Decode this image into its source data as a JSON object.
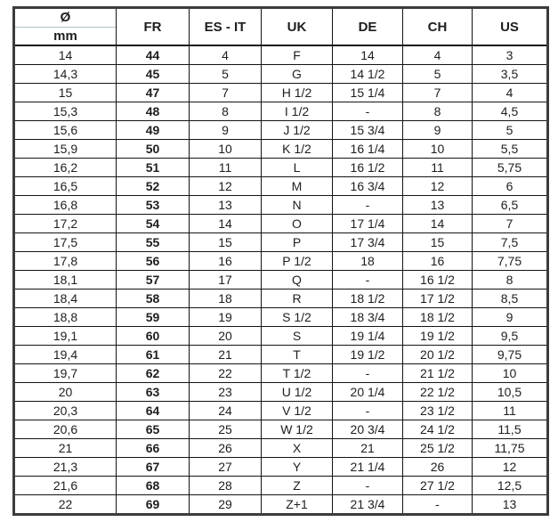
{
  "table": {
    "title": "ring-size-conversion",
    "columns": [
      {
        "key": "mm",
        "label_top": "Ø",
        "label_bottom": "mm"
      },
      {
        "key": "fr",
        "label": "FR"
      },
      {
        "key": "es-it",
        "label": "ES - IT"
      },
      {
        "key": "uk",
        "label": "UK"
      },
      {
        "key": "de",
        "label": "DE"
      },
      {
        "key": "ch",
        "label": "CH"
      },
      {
        "key": "us",
        "label": "US"
      }
    ],
    "rows": [
      [
        "14",
        "44",
        "4",
        "F",
        "14",
        "4",
        "3"
      ],
      [
        "14,3",
        "45",
        "5",
        "G",
        "14 1/2",
        "5",
        "3,5"
      ],
      [
        "15",
        "47",
        "7",
        "H 1/2",
        "15 1/4",
        "7",
        "4"
      ],
      [
        "15,3",
        "48",
        "8",
        "I 1/2",
        "-",
        "8",
        "4,5"
      ],
      [
        "15,6",
        "49",
        "9",
        "J 1/2",
        "15 3/4",
        "9",
        "5"
      ],
      [
        "15,9",
        "50",
        "10",
        "K 1/2",
        "16 1/4",
        "10",
        "5,5"
      ],
      [
        "16,2",
        "51",
        "11",
        "L",
        "16 1/2",
        "11",
        "5,75"
      ],
      [
        "16,5",
        "52",
        "12",
        "M",
        "16 3/4",
        "12",
        "6"
      ],
      [
        "16,8",
        "53",
        "13",
        "N",
        "-",
        "13",
        "6,5"
      ],
      [
        "17,2",
        "54",
        "14",
        "O",
        "17 1/4",
        "14",
        "7"
      ],
      [
        "17,5",
        "55",
        "15",
        "P",
        "17 3/4",
        "15",
        "7,5"
      ],
      [
        "17,8",
        "56",
        "16",
        "P 1/2",
        "18",
        "16",
        "7,75"
      ],
      [
        "18,1",
        "57",
        "17",
        "Q",
        "-",
        "16 1/2",
        "8"
      ],
      [
        "18,4",
        "58",
        "18",
        "R",
        "18 1/2",
        "17 1/2",
        "8,5"
      ],
      [
        "18,8",
        "59",
        "19",
        "S 1/2",
        "18 3/4",
        "18 1/2",
        "9"
      ],
      [
        "19,1",
        "60",
        "20",
        "S",
        "19 1/4",
        "19 1/2",
        "9,5"
      ],
      [
        "19,4",
        "61",
        "21",
        "T",
        "19 1/2",
        "20 1/2",
        "9,75"
      ],
      [
        "19,7",
        "62",
        "22",
        "T 1/2",
        "-",
        "21 1/2",
        "10"
      ],
      [
        "20",
        "63",
        "23",
        "U 1/2",
        "20 1/4",
        "22 1/2",
        "10,5"
      ],
      [
        "20,3",
        "64",
        "24",
        "V 1/2",
        "-",
        "23 1/2",
        "11"
      ],
      [
        "20,6",
        "65",
        "25",
        "W 1/2",
        "20 3/4",
        "24 1/2",
        "11,5"
      ],
      [
        "21",
        "66",
        "26",
        "X",
        "21",
        "25 1/2",
        "11,75"
      ],
      [
        "21,3",
        "67",
        "27",
        "Y",
        "21 1/4",
        "26",
        "12"
      ],
      [
        "21,6",
        "68",
        "28",
        "Z",
        "-",
        "27 1/2",
        "12,5"
      ],
      [
        "22",
        "69",
        "29",
        "Z+1",
        "21 3/4",
        "-",
        "13"
      ]
    ]
  },
  "colors": {
    "outer_border": "#3c3c3c",
    "grid_line": "#141414",
    "header_divider": "#b5c2ca",
    "text": "#1e1e1e",
    "background": "#ffffff"
  }
}
